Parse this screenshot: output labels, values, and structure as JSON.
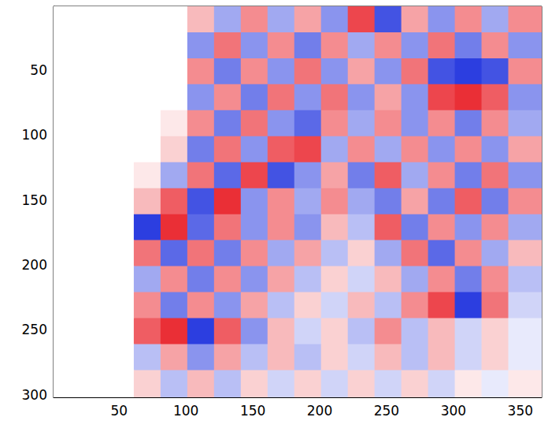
{
  "chart_data": {
    "type": "heatmap",
    "xlim": [
      1,
      366
    ],
    "xticks": [
      50,
      100,
      150,
      200,
      250,
      300,
      350
    ],
    "ylim": [
      302,
      1
    ],
    "yticks": [
      50,
      100,
      150,
      200,
      250,
      300
    ],
    "grid": false,
    "clim": [
      -1,
      1
    ],
    "x_bins": [
      1,
      21,
      41,
      61,
      81,
      101,
      121,
      141,
      161,
      181,
      201,
      221,
      241,
      261,
      281,
      301,
      321,
      341,
      366
    ],
    "y_bins": [
      1,
      21,
      41,
      61,
      81,
      101,
      121,
      141,
      161,
      181,
      201,
      221,
      241,
      261,
      281,
      302
    ],
    "cells": [
      [
        0,
        0,
        0,
        0,
        0,
        0.3,
        -0.4,
        0.5,
        -0.4,
        0.4,
        -0.5,
        0.8,
        -0.8,
        0.4,
        -0.5,
        0.5,
        -0.4,
        0.5
      ],
      [
        0,
        0,
        0,
        0,
        0,
        -0.5,
        0.6,
        -0.5,
        0.5,
        -0.6,
        0.5,
        -0.4,
        0.5,
        -0.5,
        0.6,
        -0.6,
        0.5,
        -0.5
      ],
      [
        0,
        0,
        0,
        0,
        0,
        0.5,
        -0.6,
        0.5,
        -0.5,
        0.6,
        -0.5,
        0.4,
        -0.5,
        0.6,
        -0.8,
        -0.9,
        -0.8,
        0.5
      ],
      [
        0,
        0,
        0,
        0,
        0,
        -0.5,
        0.5,
        -0.6,
        0.6,
        -0.5,
        0.6,
        -0.5,
        0.4,
        -0.5,
        0.8,
        0.9,
        0.7,
        -0.5
      ],
      [
        0,
        0,
        0,
        0,
        0.1,
        0.5,
        -0.6,
        0.6,
        -0.5,
        -0.7,
        0.5,
        -0.4,
        0.5,
        -0.5,
        0.5,
        -0.6,
        0.5,
        -0.4
      ],
      [
        0,
        0,
        0,
        0,
        0.2,
        -0.6,
        0.6,
        -0.5,
        0.7,
        0.8,
        -0.4,
        0.5,
        -0.4,
        0.5,
        -0.5,
        0.5,
        -0.5,
        0.4
      ],
      [
        0,
        0,
        0,
        0.1,
        -0.4,
        0.6,
        -0.7,
        0.8,
        -0.8,
        -0.5,
        0.4,
        -0.6,
        0.7,
        -0.4,
        0.5,
        -0.6,
        0.6,
        -0.5
      ],
      [
        0,
        0,
        0,
        0.3,
        0.7,
        -0.8,
        0.9,
        -0.5,
        0.5,
        -0.4,
        0.5,
        -0.4,
        -0.6,
        0.4,
        -0.6,
        0.7,
        -0.6,
        0.5
      ],
      [
        0,
        0,
        0,
        -0.9,
        0.9,
        -0.7,
        0.6,
        -0.5,
        0.5,
        -0.5,
        0.3,
        -0.3,
        0.7,
        -0.6,
        0.5,
        -0.5,
        0.5,
        -0.4
      ],
      [
        0,
        0,
        0,
        0.6,
        -0.7,
        0.6,
        -0.6,
        0.5,
        -0.4,
        0.4,
        -0.3,
        0.2,
        -0.4,
        0.6,
        -0.7,
        0.5,
        -0.4,
        0.3
      ],
      [
        0,
        0,
        0,
        -0.4,
        0.5,
        -0.6,
        0.5,
        -0.5,
        0.4,
        -0.3,
        0.2,
        -0.2,
        0.3,
        -0.4,
        0.5,
        -0.6,
        0.5,
        -0.3
      ],
      [
        0,
        0,
        0,
        0.5,
        -0.6,
        0.5,
        -0.5,
        0.4,
        -0.3,
        0.2,
        -0.2,
        0.3,
        -0.3,
        0.5,
        0.8,
        -0.9,
        0.6,
        -0.2
      ],
      [
        0,
        0,
        0,
        0.7,
        0.9,
        -0.9,
        0.7,
        -0.5,
        0.3,
        -0.2,
        0.2,
        -0.3,
        0.5,
        -0.3,
        0.3,
        -0.2,
        0.2,
        -0.1
      ],
      [
        0,
        0,
        0,
        -0.3,
        0.4,
        -0.5,
        0.4,
        -0.3,
        0.3,
        -0.3,
        0.2,
        -0.2,
        0.3,
        -0.3,
        0.3,
        -0.2,
        0.2,
        -0.1
      ],
      [
        0,
        0,
        0,
        0.2,
        -0.3,
        0.3,
        -0.3,
        0.2,
        -0.2,
        0.2,
        -0.2,
        0.2,
        -0.2,
        0.2,
        -0.2,
        0.1,
        -0.1,
        0.1
      ]
    ]
  }
}
